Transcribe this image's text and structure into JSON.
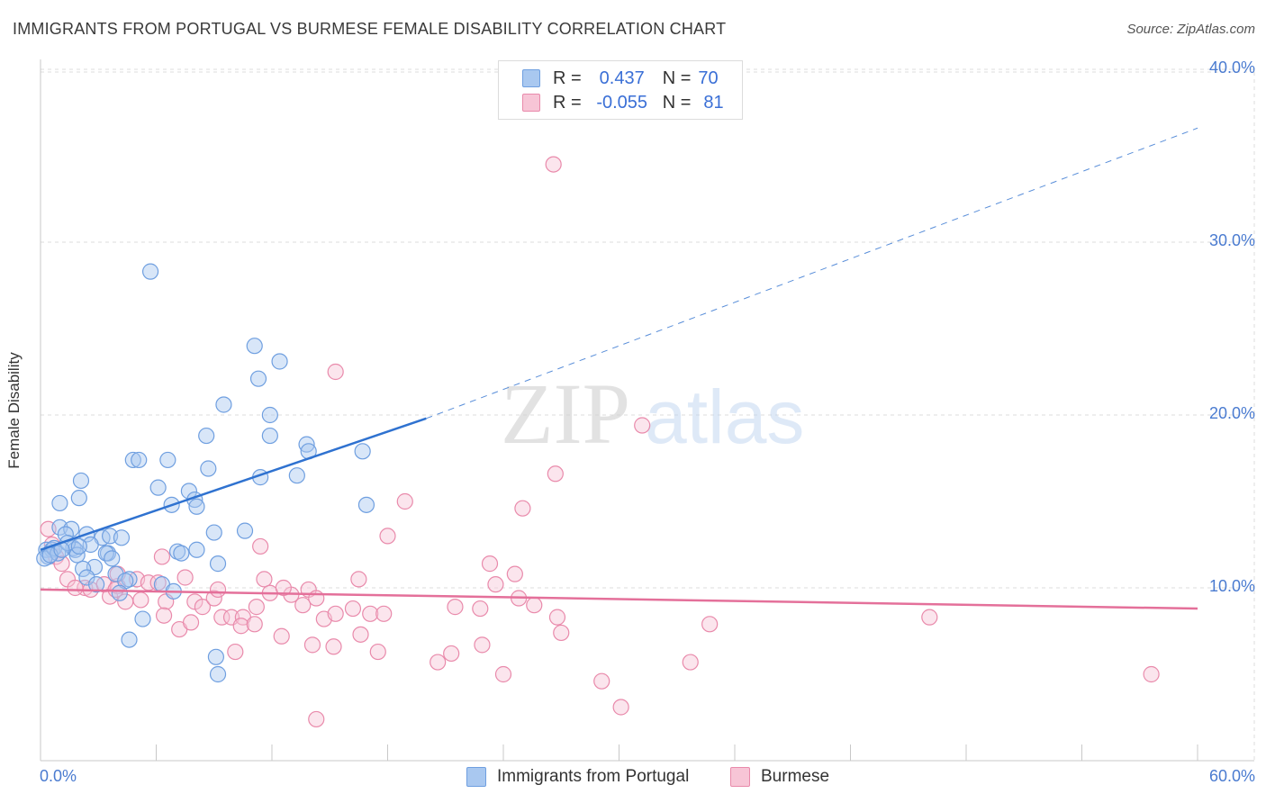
{
  "title": "IMMIGRANTS FROM PORTUGAL VS BURMESE FEMALE DISABILITY CORRELATION CHART",
  "source": "Source: ZipAtlas.com",
  "watermark": {
    "zip": "ZIP",
    "atlas": "atlas"
  },
  "colors": {
    "blue_fill": "#a9c8f0",
    "blue_stroke": "#6f9fe0",
    "blue_line": "#2f72d0",
    "pink_fill": "#f7c5d6",
    "pink_stroke": "#e98aab",
    "pink_line": "#e4709a",
    "grid": "#dddddd",
    "tick_text": "#4a7bd0"
  },
  "legend": {
    "rows": [
      {
        "r_label": "R =",
        "r_value": "0.437",
        "n_label": "N =",
        "n_value": "70",
        "series": "blue"
      },
      {
        "r_label": "R =",
        "r_value": "-0.055",
        "n_label": "N =",
        "n_value": "81",
        "series": "pink"
      }
    ]
  },
  "bottom_legend": [
    {
      "label": "Immigrants from Portugal",
      "series": "blue"
    },
    {
      "label": "Burmese",
      "series": "pink"
    }
  ],
  "chart_data": {
    "type": "scatter",
    "title": "IMMIGRANTS FROM PORTUGAL VS BURMESE FEMALE DISABILITY CORRELATION CHART",
    "xlabel": "",
    "ylabel": "Female Disability",
    "xlim": [
      0,
      60
    ],
    "ylim": [
      0,
      40
    ],
    "x_ticks": [
      "0.0%",
      "60.0%"
    ],
    "y_ticks": [
      {
        "value": 10,
        "label": "10.0%"
      },
      {
        "value": 20,
        "label": "20.0%"
      },
      {
        "value": 30,
        "label": "30.0%"
      },
      {
        "value": 40,
        "label": "40.0%"
      }
    ],
    "grid": true,
    "legend_position": "top-center",
    "series": [
      {
        "name": "Immigrants from Portugal",
        "color": "blue",
        "R": 0.437,
        "N": 70,
        "trend": {
          "x0": 0,
          "y0": 12.2,
          "x1": 20,
          "y1": 19.8,
          "dashed_to_x": 60,
          "dashed_to_y": 36.6
        },
        "points": [
          [
            5.7,
            28.3
          ],
          [
            11.1,
            24.0
          ],
          [
            12.4,
            23.1
          ],
          [
            11.3,
            22.1
          ],
          [
            9.5,
            20.6
          ],
          [
            11.9,
            20.0
          ],
          [
            8.6,
            18.8
          ],
          [
            11.9,
            18.8
          ],
          [
            13.8,
            18.3
          ],
          [
            13.9,
            17.9
          ],
          [
            16.7,
            17.9
          ],
          [
            4.8,
            17.4
          ],
          [
            5.1,
            17.4
          ],
          [
            6.6,
            17.4
          ],
          [
            8.7,
            16.9
          ],
          [
            11.4,
            16.4
          ],
          [
            13.3,
            16.5
          ],
          [
            2.1,
            16.2
          ],
          [
            6.1,
            15.8
          ],
          [
            7.7,
            15.6
          ],
          [
            2.0,
            15.2
          ],
          [
            8.0,
            15.1
          ],
          [
            1.0,
            14.9
          ],
          [
            6.8,
            14.8
          ],
          [
            8.1,
            14.7
          ],
          [
            16.9,
            14.8
          ],
          [
            1.0,
            13.5
          ],
          [
            1.6,
            13.4
          ],
          [
            1.3,
            13.1
          ],
          [
            2.4,
            13.1
          ],
          [
            3.2,
            12.9
          ],
          [
            3.6,
            13.0
          ],
          [
            4.2,
            12.9
          ],
          [
            10.6,
            13.3
          ],
          [
            9.0,
            13.2
          ],
          [
            2.6,
            12.5
          ],
          [
            1.7,
            12.3
          ],
          [
            0.3,
            12.2
          ],
          [
            0.6,
            12.2
          ],
          [
            1.8,
            12.2
          ],
          [
            3.5,
            12.0
          ],
          [
            3.4,
            12.0
          ],
          [
            7.1,
            12.1
          ],
          [
            7.3,
            12.0
          ],
          [
            8.1,
            12.2
          ],
          [
            0.4,
            11.8
          ],
          [
            3.7,
            11.7
          ],
          [
            0.2,
            11.7
          ],
          [
            1.9,
            11.9
          ],
          [
            2.8,
            11.2
          ],
          [
            2.2,
            11.1
          ],
          [
            9.2,
            11.4
          ],
          [
            3.9,
            10.8
          ],
          [
            2.4,
            10.6
          ],
          [
            4.6,
            10.5
          ],
          [
            2.9,
            10.2
          ],
          [
            4.4,
            10.4
          ],
          [
            6.3,
            10.2
          ],
          [
            4.1,
            9.7
          ],
          [
            6.9,
            9.8
          ],
          [
            5.3,
            8.2
          ],
          [
            4.6,
            7.0
          ],
          [
            9.1,
            6.0
          ],
          [
            9.2,
            5.0
          ],
          [
            0.7,
            12.3
          ],
          [
            0.9,
            12.0
          ],
          [
            1.4,
            12.6
          ],
          [
            2.0,
            12.4
          ],
          [
            0.5,
            11.9
          ],
          [
            1.1,
            12.2
          ]
        ]
      },
      {
        "name": "Burmese",
        "color": "pink",
        "R": -0.055,
        "N": 81,
        "trend": {
          "x0": 0,
          "y0": 9.9,
          "x1": 60,
          "y1": 8.8
        },
        "points": [
          [
            26.6,
            34.5
          ],
          [
            15.3,
            22.5
          ],
          [
            31.2,
            19.4
          ],
          [
            26.7,
            16.6
          ],
          [
            18.9,
            15.0
          ],
          [
            25.0,
            14.6
          ],
          [
            18.0,
            13.0
          ],
          [
            11.4,
            12.4
          ],
          [
            6.3,
            11.8
          ],
          [
            23.3,
            11.4
          ],
          [
            24.6,
            10.8
          ],
          [
            0.4,
            13.4
          ],
          [
            0.6,
            12.5
          ],
          [
            0.8,
            11.8
          ],
          [
            1.1,
            11.4
          ],
          [
            1.4,
            10.5
          ],
          [
            2.3,
            10.0
          ],
          [
            1.8,
            10.0
          ],
          [
            2.6,
            9.9
          ],
          [
            3.3,
            10.2
          ],
          [
            3.6,
            9.5
          ],
          [
            4.0,
            10.1
          ],
          [
            4.4,
            9.2
          ],
          [
            4.0,
            10.8
          ],
          [
            5.0,
            10.5
          ],
          [
            5.6,
            10.3
          ],
          [
            5.2,
            9.3
          ],
          [
            6.1,
            10.3
          ],
          [
            6.5,
            9.2
          ],
          [
            7.5,
            10.6
          ],
          [
            8.0,
            9.2
          ],
          [
            8.4,
            8.9
          ],
          [
            9.0,
            9.4
          ],
          [
            9.2,
            9.9
          ],
          [
            9.4,
            8.3
          ],
          [
            9.9,
            8.3
          ],
          [
            10.5,
            8.3
          ],
          [
            10.4,
            7.8
          ],
          [
            11.1,
            7.9
          ],
          [
            11.2,
            8.9
          ],
          [
            11.6,
            10.5
          ],
          [
            11.9,
            9.7
          ],
          [
            12.5,
            7.2
          ],
          [
            13.0,
            9.6
          ],
          [
            13.6,
            9.0
          ],
          [
            13.9,
            9.9
          ],
          [
            14.3,
            9.4
          ],
          [
            14.7,
            8.2
          ],
          [
            15.3,
            8.5
          ],
          [
            16.2,
            8.8
          ],
          [
            16.6,
            7.3
          ],
          [
            17.1,
            8.5
          ],
          [
            17.8,
            8.5
          ],
          [
            16.5,
            10.5
          ],
          [
            17.5,
            6.3
          ],
          [
            20.6,
            5.7
          ],
          [
            21.3,
            6.2
          ],
          [
            21.5,
            8.9
          ],
          [
            22.8,
            8.8
          ],
          [
            22.9,
            6.7
          ],
          [
            23.6,
            10.2
          ],
          [
            24.0,
            5.0
          ],
          [
            24.8,
            9.4
          ],
          [
            25.6,
            9.0
          ],
          [
            26.8,
            8.3
          ],
          [
            27.0,
            7.4
          ],
          [
            29.1,
            4.6
          ],
          [
            30.1,
            3.1
          ],
          [
            33.7,
            5.7
          ],
          [
            34.7,
            7.9
          ],
          [
            46.1,
            8.3
          ],
          [
            57.6,
            5.0
          ],
          [
            14.1,
            6.7
          ],
          [
            15.2,
            6.6
          ],
          [
            14.3,
            2.4
          ],
          [
            7.2,
            7.6
          ],
          [
            6.4,
            8.4
          ],
          [
            3.9,
            9.9
          ],
          [
            12.6,
            10.0
          ],
          [
            10.1,
            6.3
          ],
          [
            7.8,
            8.0
          ]
        ]
      }
    ]
  }
}
